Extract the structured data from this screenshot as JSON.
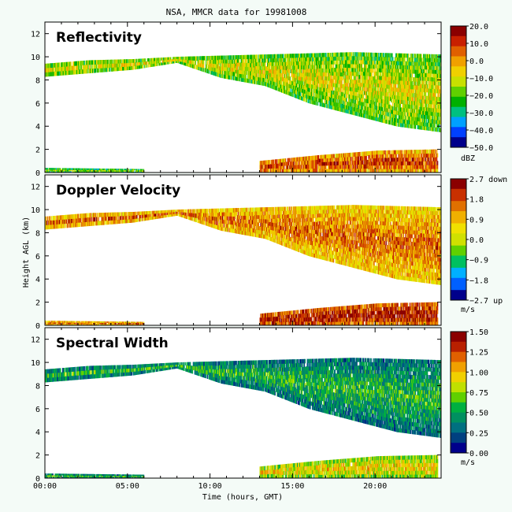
{
  "title": "NSA, MMCR data for 19981008",
  "y_label": "Height AGL (km)",
  "x_label": "Time (hours, GMT)",
  "x_ticks": [
    "00:00",
    "05:00",
    "10:00",
    "15:00",
    "20:00"
  ],
  "y_ticks": [
    "0",
    "2",
    "4",
    "6",
    "8",
    "10",
    "12"
  ],
  "panels": [
    {
      "title": "Reflectivity",
      "unit": "dBZ",
      "colorbar_ticks": [
        "20.0",
        "10.0",
        "0.0",
        "−10.0",
        "−20.0",
        "−30.0",
        "−40.0",
        "−50.0"
      ],
      "range": [
        -50,
        20
      ],
      "colors": [
        "#00008b",
        "#0040ff",
        "#00a0ff",
        "#00c080",
        "#00b000",
        "#60d000",
        "#c8e000",
        "#f0d000",
        "#f0a000",
        "#e06000",
        "#c82000",
        "#8b0000"
      ]
    },
    {
      "title": "Doppler Velocity",
      "unit": "m/s",
      "colorbar_ticks": [
        "2.7 down",
        "1.8",
        "0.9",
        "0.0",
        "−0.9",
        "−1.8",
        "−2.7 up"
      ],
      "range": [
        -2.7,
        2.7
      ],
      "colors": [
        "#00008b",
        "#0060ff",
        "#00b0ff",
        "#00c060",
        "#60d000",
        "#d0e000",
        "#f0e000",
        "#f0b000",
        "#e07000",
        "#c83000",
        "#8b0000"
      ]
    },
    {
      "title": "Spectral Width",
      "unit": "m/s",
      "colorbar_ticks": [
        "1.50",
        "1.25",
        "1.00",
        "0.75",
        "0.50",
        "0.25",
        "0.00"
      ],
      "range": [
        0,
        1.5
      ],
      "colors": [
        "#00008b",
        "#004080",
        "#007080",
        "#009060",
        "#00b040",
        "#60d000",
        "#c0e000",
        "#f0d000",
        "#f0a000",
        "#e06000",
        "#b82000",
        "#8b0000"
      ]
    }
  ],
  "chart_data": {
    "type": "heatmap",
    "title": "NSA, MMCR data for 19981008",
    "xlabel": "Time (hours, GMT)",
    "ylabel": "Height AGL (km)",
    "xlim": [
      0,
      24
    ],
    "ylim": [
      0,
      13
    ],
    "x_tick_values": [
      0,
      5,
      10,
      15,
      20
    ],
    "y_tick_values": [
      0,
      2,
      4,
      6,
      8,
      10,
      12
    ],
    "layers": [
      {
        "name": "upper cloud",
        "t0": 0.0,
        "t1": 24.0,
        "base": [
          8.3,
          8.6,
          8.9,
          9.5,
          8.2,
          7.5,
          6.0,
          5.0,
          4.0,
          3.5
        ],
        "top": [
          9.4,
          9.7,
          9.8,
          10.0,
          10.1,
          10.2,
          10.3,
          10.4,
          10.3,
          10.2
        ]
      },
      {
        "name": "boundary layer",
        "t0": 13.0,
        "t1": 23.8,
        "base": [
          0.0,
          0.0,
          0.0,
          0.0
        ],
        "top": [
          1.0,
          1.5,
          1.9,
          2.0
        ]
      },
      {
        "name": "low surface layer",
        "t0": 0.0,
        "t1": 6.0,
        "base": [
          0.0,
          0.0
        ],
        "top": [
          0.4,
          0.3
        ]
      }
    ]
  }
}
